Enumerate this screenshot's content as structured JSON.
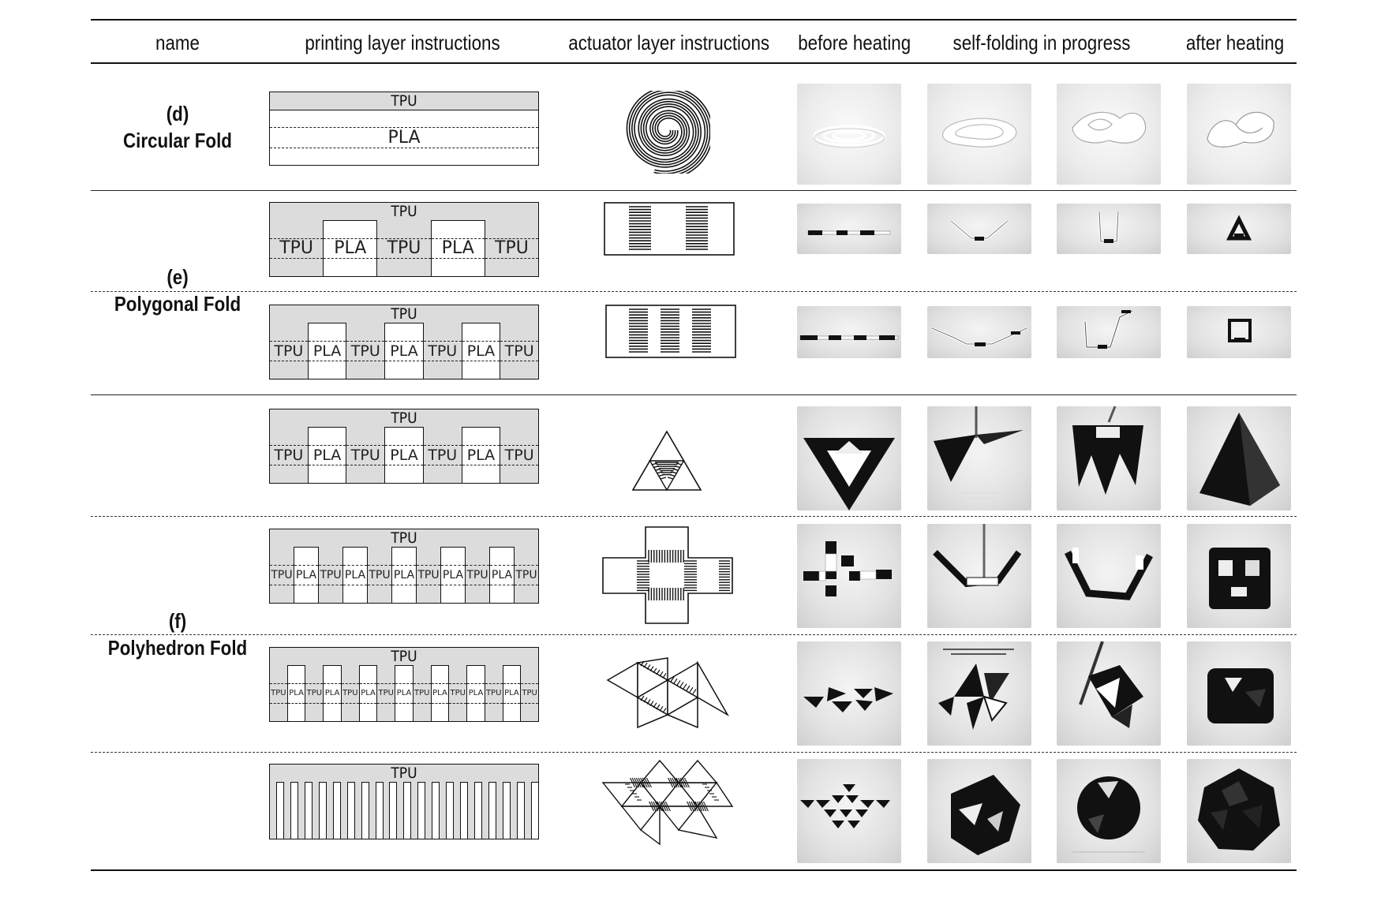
{
  "header": {
    "name": "name",
    "printing": "printing layer instructions",
    "actuator": "actuator layer instructions",
    "before": "before heating",
    "progress": "self-folding in progress",
    "after": "after heating"
  },
  "rows": {
    "d": {
      "label": "(d)",
      "name": "Circular Fold",
      "top_label": "TPU",
      "bottom_label": "PLA"
    },
    "e": {
      "label": "(e)",
      "name": "Polygonal Fold",
      "top_label": "TPU",
      "cells_a": [
        "TPU",
        "PLA",
        "TPU",
        "PLA",
        "TPU"
      ],
      "cells_b": [
        "TPU",
        "PLA",
        "TPU",
        "PLA",
        "TPU",
        "PLA",
        "TPU"
      ]
    },
    "f": {
      "label": "(f)",
      "name": "Polyhedron Fold",
      "top_label": "TPU",
      "cells_a": [
        "TPU",
        "PLA",
        "TPU",
        "PLA",
        "TPU",
        "PLA",
        "TPU"
      ],
      "cells_b": [
        "TPU",
        "PLA",
        "TPU",
        "PLA",
        "TPU",
        "PLA",
        "TPU",
        "PLA",
        "TPU",
        "PLA",
        "TPU"
      ],
      "cells_c": [
        "TPU",
        "PLA",
        "TPU",
        "PLA",
        "TPU",
        "PLA",
        "TPU",
        "PLA",
        "TPU",
        "PLA",
        "TPU",
        "PLA",
        "TPU",
        "PLA",
        "TPU"
      ]
    }
  },
  "colors": {
    "line": "#111111",
    "tpu_fill": "#dcdcdc",
    "background": "#ffffff"
  },
  "icons": [
    "spiral-actuator-icon",
    "strip-actuator-icon",
    "triangle-net-icon",
    "cross-net-icon",
    "octahedron-net-icon",
    "icosahedron-net-icon"
  ]
}
